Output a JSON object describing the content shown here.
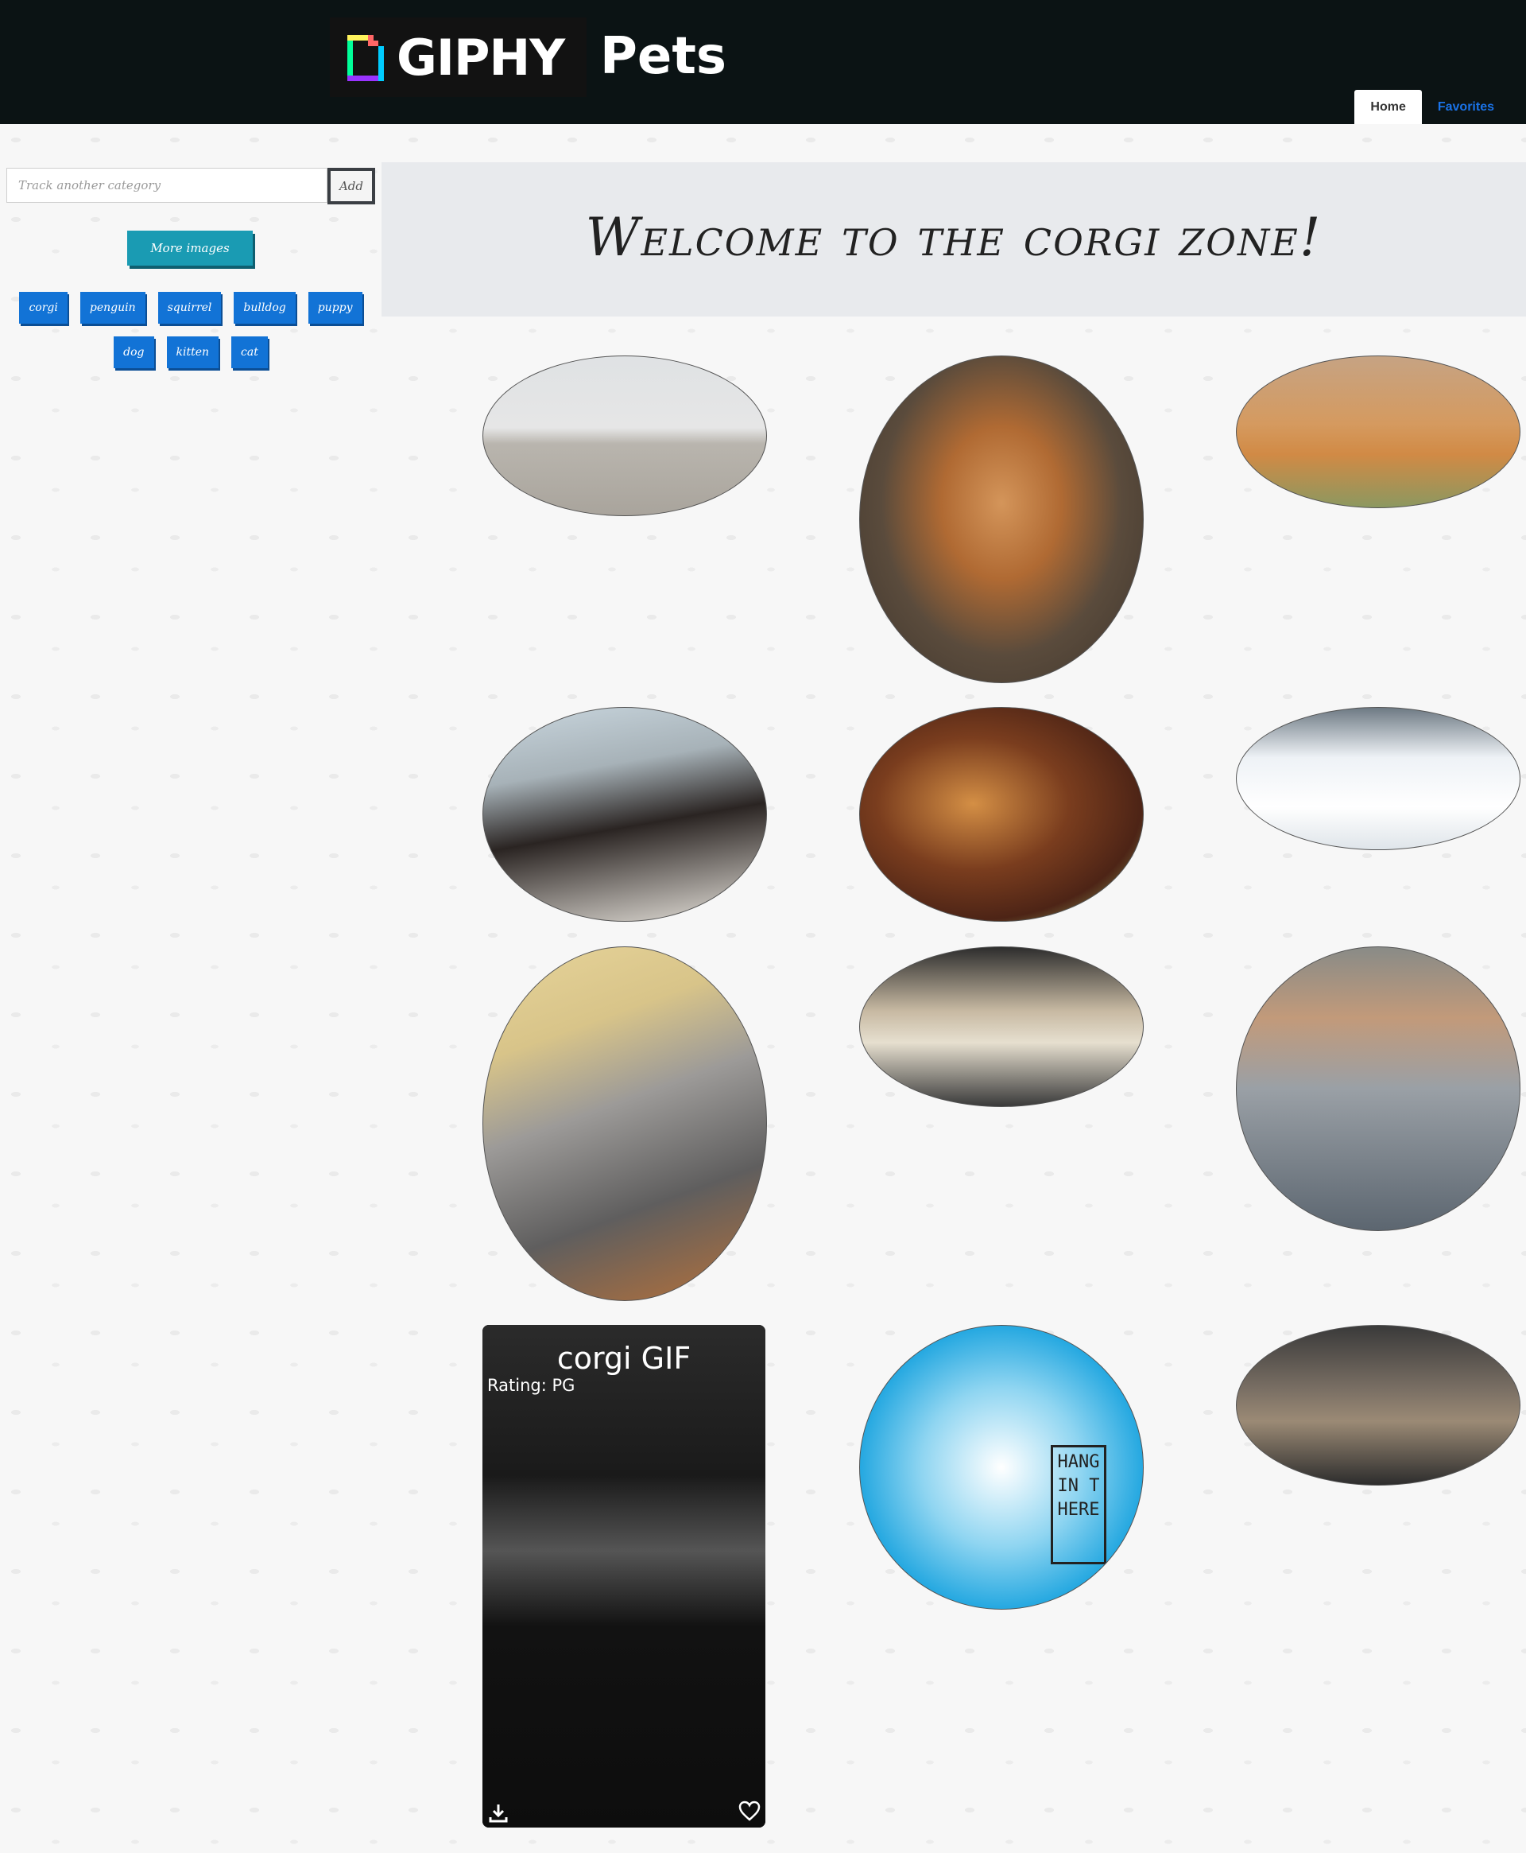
{
  "header": {
    "logo_text": "GIPHY",
    "site_title": "Pets",
    "nav": [
      {
        "label": "Home"
      },
      {
        "label": "Favorites"
      }
    ]
  },
  "sidebar": {
    "search": {
      "placeholder": "Track another category",
      "value": ""
    },
    "add_label": "Add",
    "more_label": "More images",
    "categories": [
      "corgi",
      "penguin",
      "squirrel",
      "bulldog",
      "puppy",
      "dog",
      "kitten",
      "cat"
    ]
  },
  "banner": {
    "text": "Welcome to the corgi zone!"
  },
  "gifs": {
    "featured": {
      "title": "corgi GIF",
      "rating": "Rating: PG"
    },
    "hang_text": "HANG IN THERE"
  },
  "icons": {
    "download": "download-icon",
    "favorite": "heart-outline-icon"
  },
  "colors": {
    "header_bg": "#0b1314",
    "nav_link": "#1a73e8",
    "category_button": "#1273d6",
    "more_button": "#1a9bb3"
  }
}
